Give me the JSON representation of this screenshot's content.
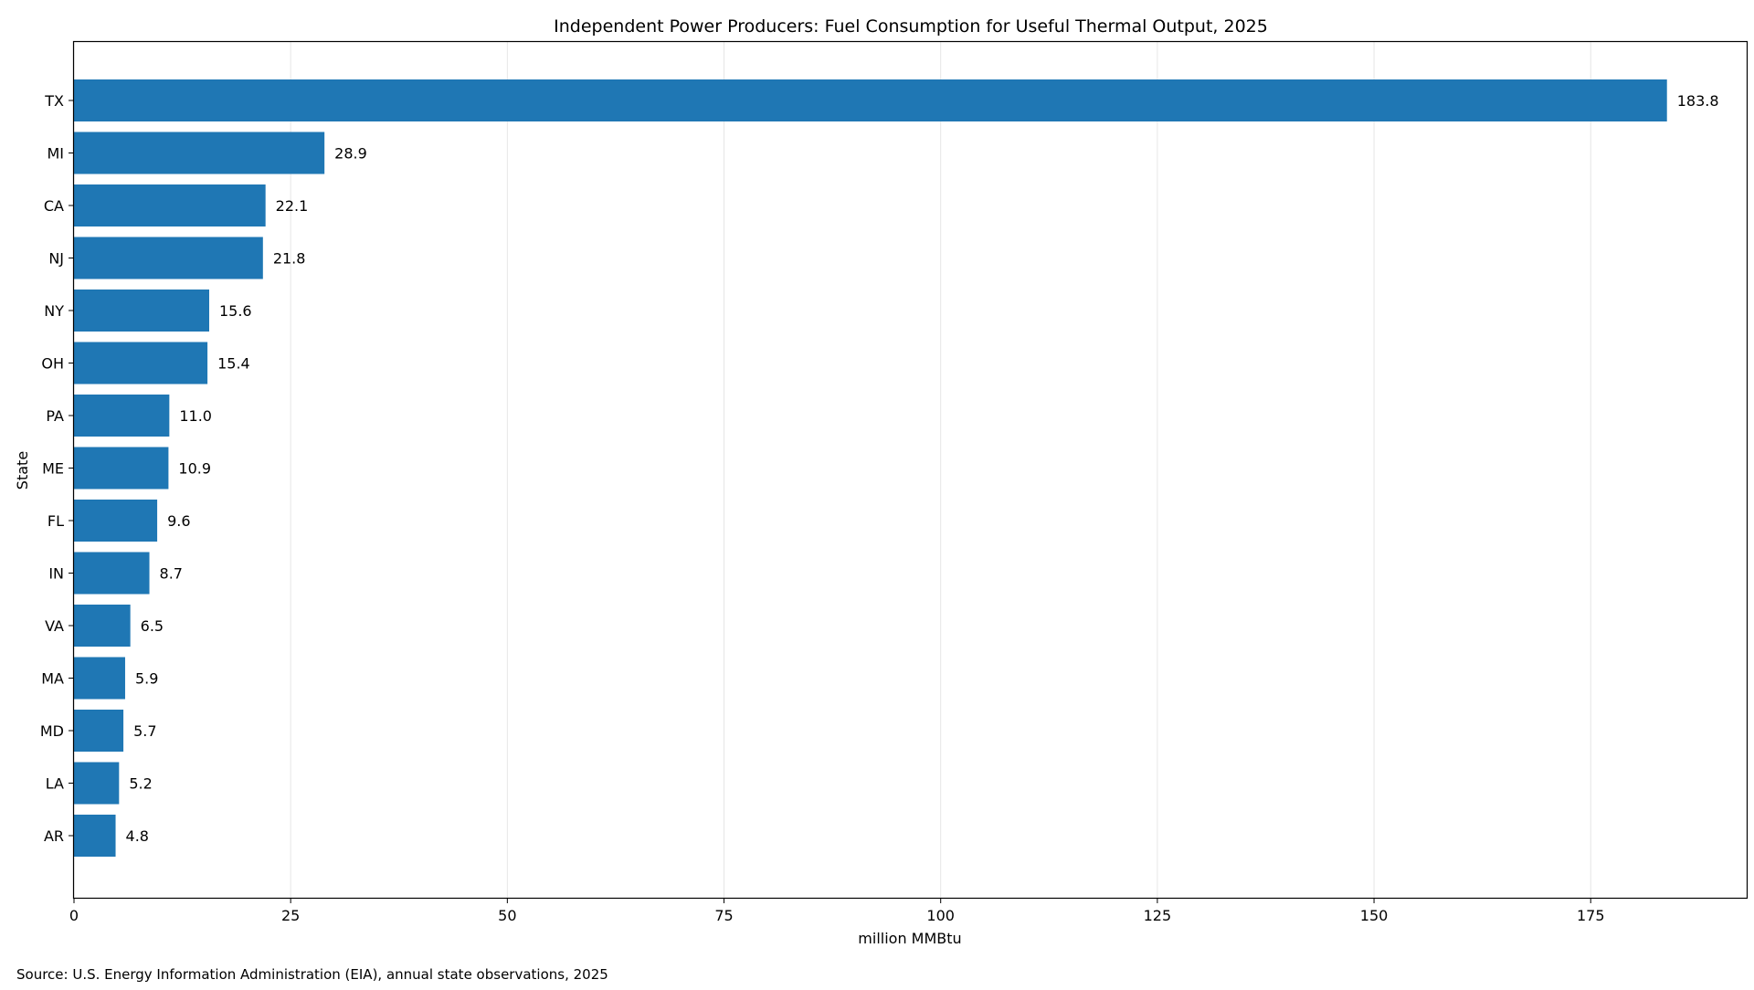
{
  "chart_data": {
    "type": "bar",
    "orientation": "horizontal",
    "title": "Independent Power Producers: Fuel Consumption for Useful Thermal Output, 2025",
    "xlabel": "million MMBtu",
    "ylabel": "State",
    "categories": [
      "TX",
      "MI",
      "CA",
      "NJ",
      "NY",
      "OH",
      "PA",
      "ME",
      "FL",
      "IN",
      "VA",
      "MA",
      "MD",
      "LA",
      "AR"
    ],
    "values": [
      183.8,
      28.9,
      22.1,
      21.8,
      15.6,
      15.4,
      11.0,
      10.9,
      9.6,
      8.7,
      6.5,
      5.9,
      5.7,
      5.2,
      4.8
    ],
    "value_labels": [
      "183.8",
      "28.9",
      "22.1",
      "21.8",
      "15.6",
      "15.4",
      "11.0",
      "10.9",
      "9.6",
      "8.7",
      "6.5",
      "5.9",
      "5.7",
      "5.2",
      "4.8"
    ],
    "xlim": [
      0,
      193
    ],
    "xticks": [
      0,
      25,
      50,
      75,
      100,
      125,
      150,
      175
    ],
    "grid": "vertical",
    "bar_color": "#1f77b4",
    "grid_color": "#e6e6e6"
  },
  "source_note": "Source: U.S. Energy Information Administration (EIA), annual state observations, 2025"
}
